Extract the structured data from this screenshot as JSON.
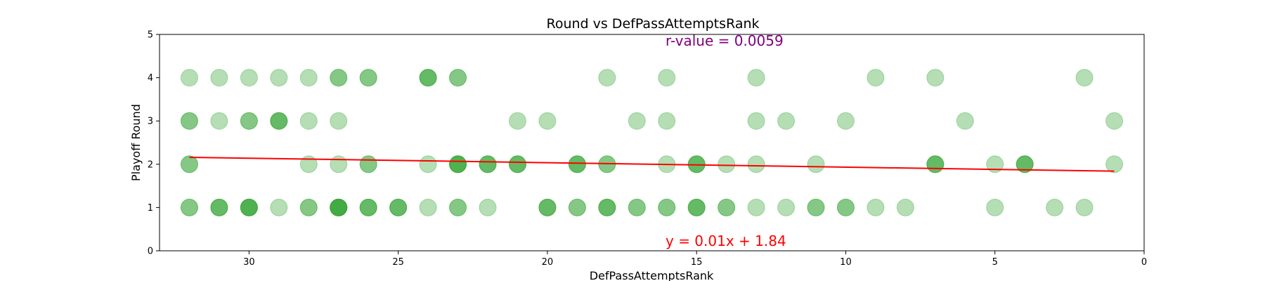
{
  "chart_data": {
    "type": "scatter",
    "title": "Round vs DefPassAttemptsRank",
    "xlabel": "DefPassAttemptsRank",
    "ylabel": "Playoff Round",
    "xlim": [
      33,
      0
    ],
    "ylim": [
      0,
      5
    ],
    "x_inverted": true,
    "xticks": [
      30,
      25,
      20,
      15,
      10,
      5,
      0
    ],
    "yticks": [
      0,
      1,
      2,
      3,
      4,
      5
    ],
    "grid": false,
    "marker_color": "#2ca02c",
    "marker_alpha": 0.35,
    "points": [
      {
        "x": 32,
        "y": 4
      },
      {
        "x": 31,
        "y": 4
      },
      {
        "x": 30,
        "y": 4
      },
      {
        "x": 29,
        "y": 4
      },
      {
        "x": 28,
        "y": 4
      },
      {
        "x": 27,
        "y": 4
      },
      {
        "x": 27,
        "y": 4
      },
      {
        "x": 26,
        "y": 4
      },
      {
        "x": 26,
        "y": 4
      },
      {
        "x": 24,
        "y": 4
      },
      {
        "x": 24,
        "y": 4
      },
      {
        "x": 24,
        "y": 4
      },
      {
        "x": 23,
        "y": 4
      },
      {
        "x": 23,
        "y": 4
      },
      {
        "x": 18,
        "y": 4
      },
      {
        "x": 16,
        "y": 4
      },
      {
        "x": 13,
        "y": 4
      },
      {
        "x": 9,
        "y": 4
      },
      {
        "x": 7,
        "y": 4
      },
      {
        "x": 2,
        "y": 4
      },
      {
        "x": 32,
        "y": 3
      },
      {
        "x": 32,
        "y": 3
      },
      {
        "x": 31,
        "y": 3
      },
      {
        "x": 30,
        "y": 3
      },
      {
        "x": 30,
        "y": 3
      },
      {
        "x": 29,
        "y": 3
      },
      {
        "x": 29,
        "y": 3
      },
      {
        "x": 29,
        "y": 3
      },
      {
        "x": 28,
        "y": 3
      },
      {
        "x": 27,
        "y": 3
      },
      {
        "x": 21,
        "y": 3
      },
      {
        "x": 20,
        "y": 3
      },
      {
        "x": 17,
        "y": 3
      },
      {
        "x": 16,
        "y": 3
      },
      {
        "x": 13,
        "y": 3
      },
      {
        "x": 12,
        "y": 3
      },
      {
        "x": 10,
        "y": 3
      },
      {
        "x": 6,
        "y": 3
      },
      {
        "x": 1,
        "y": 3
      },
      {
        "x": 32,
        "y": 2
      },
      {
        "x": 32,
        "y": 2
      },
      {
        "x": 28,
        "y": 2
      },
      {
        "x": 27,
        "y": 2
      },
      {
        "x": 26,
        "y": 2
      },
      {
        "x": 26,
        "y": 2
      },
      {
        "x": 24,
        "y": 2
      },
      {
        "x": 23,
        "y": 2
      },
      {
        "x": 23,
        "y": 2
      },
      {
        "x": 23,
        "y": 2
      },
      {
        "x": 23,
        "y": 2
      },
      {
        "x": 22,
        "y": 2
      },
      {
        "x": 22,
        "y": 2
      },
      {
        "x": 22,
        "y": 2
      },
      {
        "x": 21,
        "y": 2
      },
      {
        "x": 21,
        "y": 2
      },
      {
        "x": 21,
        "y": 2
      },
      {
        "x": 19,
        "y": 2
      },
      {
        "x": 19,
        "y": 2
      },
      {
        "x": 19,
        "y": 2
      },
      {
        "x": 18,
        "y": 2
      },
      {
        "x": 18,
        "y": 2
      },
      {
        "x": 16,
        "y": 2
      },
      {
        "x": 15,
        "y": 2
      },
      {
        "x": 15,
        "y": 2
      },
      {
        "x": 15,
        "y": 2
      },
      {
        "x": 14,
        "y": 2
      },
      {
        "x": 13,
        "y": 2
      },
      {
        "x": 11,
        "y": 2
      },
      {
        "x": 7,
        "y": 2
      },
      {
        "x": 7,
        "y": 2
      },
      {
        "x": 7,
        "y": 2
      },
      {
        "x": 5,
        "y": 2
      },
      {
        "x": 4,
        "y": 2
      },
      {
        "x": 4,
        "y": 2
      },
      {
        "x": 4,
        "y": 2
      },
      {
        "x": 1,
        "y": 2
      },
      {
        "x": 32,
        "y": 1
      },
      {
        "x": 32,
        "y": 1
      },
      {
        "x": 31,
        "y": 1
      },
      {
        "x": 31,
        "y": 1
      },
      {
        "x": 31,
        "y": 1
      },
      {
        "x": 30,
        "y": 1
      },
      {
        "x": 30,
        "y": 1
      },
      {
        "x": 30,
        "y": 1
      },
      {
        "x": 30,
        "y": 1
      },
      {
        "x": 29,
        "y": 1
      },
      {
        "x": 28,
        "y": 1
      },
      {
        "x": 28,
        "y": 1
      },
      {
        "x": 27,
        "y": 1
      },
      {
        "x": 27,
        "y": 1
      },
      {
        "x": 27,
        "y": 1
      },
      {
        "x": 27,
        "y": 1
      },
      {
        "x": 27,
        "y": 1
      },
      {
        "x": 26,
        "y": 1
      },
      {
        "x": 26,
        "y": 1
      },
      {
        "x": 26,
        "y": 1
      },
      {
        "x": 25,
        "y": 1
      },
      {
        "x": 25,
        "y": 1
      },
      {
        "x": 25,
        "y": 1
      },
      {
        "x": 24,
        "y": 1
      },
      {
        "x": 23,
        "y": 1
      },
      {
        "x": 23,
        "y": 1
      },
      {
        "x": 22,
        "y": 1
      },
      {
        "x": 20,
        "y": 1
      },
      {
        "x": 20,
        "y": 1
      },
      {
        "x": 20,
        "y": 1
      },
      {
        "x": 19,
        "y": 1
      },
      {
        "x": 19,
        "y": 1
      },
      {
        "x": 18,
        "y": 1
      },
      {
        "x": 18,
        "y": 1
      },
      {
        "x": 18,
        "y": 1
      },
      {
        "x": 17,
        "y": 1
      },
      {
        "x": 17,
        "y": 1
      },
      {
        "x": 16,
        "y": 1
      },
      {
        "x": 16,
        "y": 1
      },
      {
        "x": 15,
        "y": 1
      },
      {
        "x": 15,
        "y": 1
      },
      {
        "x": 15,
        "y": 1
      },
      {
        "x": 14,
        "y": 1
      },
      {
        "x": 14,
        "y": 1
      },
      {
        "x": 13,
        "y": 1
      },
      {
        "x": 12,
        "y": 1
      },
      {
        "x": 11,
        "y": 1
      },
      {
        "x": 11,
        "y": 1
      },
      {
        "x": 10,
        "y": 1
      },
      {
        "x": 10,
        "y": 1
      },
      {
        "x": 9,
        "y": 1
      },
      {
        "x": 8,
        "y": 1
      },
      {
        "x": 5,
        "y": 1
      },
      {
        "x": 3,
        "y": 1
      },
      {
        "x": 2,
        "y": 1
      }
    ],
    "regression": {
      "x_start": 32,
      "x_end": 1,
      "y_start": 2.16,
      "y_end": 1.84,
      "color": "#ff0000",
      "equation_label": "y = 0.01x + 1.84",
      "r_value_label": "r-value = 0.0059"
    },
    "annotation_colors": {
      "r_value": "#800080",
      "equation": "#ff0000"
    }
  }
}
